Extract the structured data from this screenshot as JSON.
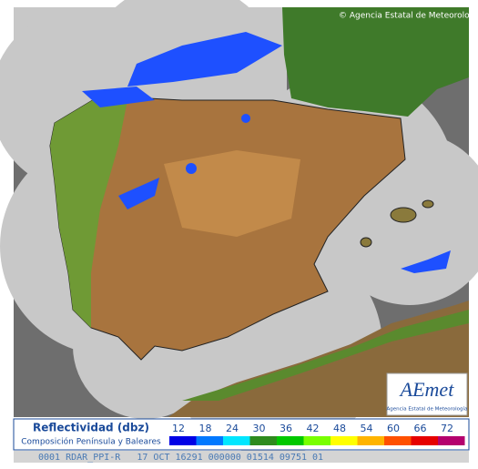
{
  "copyright": "© Agencia Estatal de Meteorología",
  "logo": {
    "brand": "AEmet",
    "caption": "Agencia Estatal de Meteorología"
  },
  "legend": {
    "title": "Reflectividad (dbz)",
    "subtitle": "Composición Península y Baleares",
    "levels": [
      {
        "value": "12",
        "color": "#0000e6"
      },
      {
        "value": "18",
        "color": "#0078ff"
      },
      {
        "value": "24",
        "color": "#00e6ff"
      },
      {
        "value": "30",
        "color": "#2e8b1e"
      },
      {
        "value": "36",
        "color": "#00c800"
      },
      {
        "value": "42",
        "color": "#78ff00"
      },
      {
        "value": "48",
        "color": "#ffff00"
      },
      {
        "value": "54",
        "color": "#ffb400"
      },
      {
        "value": "60",
        "color": "#ff5000"
      },
      {
        "value": "66",
        "color": "#e60000"
      },
      {
        "value": "72",
        "color": "#b4006e"
      }
    ]
  },
  "footer": "0001 RDAR_PPI-R   17 OCT 16291 000000 01514 09751 01"
}
